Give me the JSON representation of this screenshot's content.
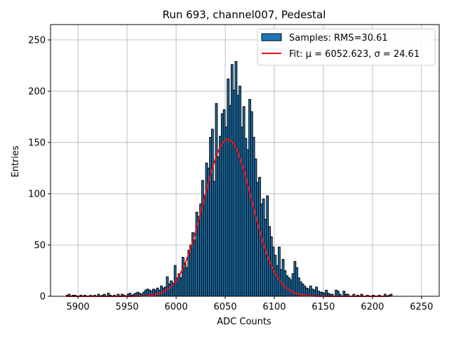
{
  "chart_data": {
    "type": "histogram",
    "title": "Run 693, channel007, Pedestal",
    "xlabel": "ADC Counts",
    "ylabel": "Entries",
    "xlim": [
      5872,
      6268
    ],
    "ylim": [
      0,
      265
    ],
    "xticks": [
      5900,
      5950,
      6000,
      6050,
      6100,
      6150,
      6200,
      6250
    ],
    "yticks": [
      0,
      50,
      100,
      150,
      200,
      250
    ],
    "grid": true,
    "legend_position": "top-right",
    "bin_width": 2,
    "bins": [
      [
        5888,
        1
      ],
      [
        5890,
        2
      ],
      [
        5894,
        1
      ],
      [
        5896,
        1
      ],
      [
        5902,
        1
      ],
      [
        5906,
        1
      ],
      [
        5912,
        1
      ],
      [
        5916,
        1
      ],
      [
        5920,
        2
      ],
      [
        5924,
        1
      ],
      [
        5926,
        2
      ],
      [
        5930,
        3
      ],
      [
        5932,
        1
      ],
      [
        5936,
        1
      ],
      [
        5940,
        2
      ],
      [
        5944,
        2
      ],
      [
        5946,
        1
      ],
      [
        5950,
        2
      ],
      [
        5952,
        3
      ],
      [
        5954,
        1
      ],
      [
        5956,
        2
      ],
      [
        5958,
        3
      ],
      [
        5960,
        4
      ],
      [
        5962,
        3
      ],
      [
        5964,
        2
      ],
      [
        5966,
        4
      ],
      [
        5968,
        6
      ],
      [
        5970,
        7
      ],
      [
        5972,
        6
      ],
      [
        5974,
        5
      ],
      [
        5976,
        7
      ],
      [
        5978,
        6
      ],
      [
        5980,
        8
      ],
      [
        5982,
        6
      ],
      [
        5984,
        10
      ],
      [
        5986,
        8
      ],
      [
        5988,
        9
      ],
      [
        5990,
        19
      ],
      [
        5992,
        12
      ],
      [
        5994,
        15
      ],
      [
        5996,
        13
      ],
      [
        5998,
        30
      ],
      [
        6000,
        18
      ],
      [
        6002,
        22
      ],
      [
        6004,
        18
      ],
      [
        6006,
        38
      ],
      [
        6008,
        32
      ],
      [
        6010,
        28
      ],
      [
        6012,
        45
      ],
      [
        6014,
        50
      ],
      [
        6016,
        62
      ],
      [
        6018,
        55
      ],
      [
        6020,
        82
      ],
      [
        6022,
        78
      ],
      [
        6024,
        90
      ],
      [
        6026,
        113
      ],
      [
        6028,
        98
      ],
      [
        6030,
        130
      ],
      [
        6032,
        125
      ],
      [
        6034,
        155
      ],
      [
        6036,
        163
      ],
      [
        6038,
        112
      ],
      [
        6040,
        188
      ],
      [
        6042,
        136
      ],
      [
        6044,
        156
      ],
      [
        6046,
        178
      ],
      [
        6048,
        182
      ],
      [
        6050,
        165
      ],
      [
        6052,
        212
      ],
      [
        6054,
        186
      ],
      [
        6056,
        226
      ],
      [
        6058,
        201
      ],
      [
        6060,
        229
      ],
      [
        6062,
        196
      ],
      [
        6064,
        205
      ],
      [
        6066,
        165
      ],
      [
        6068,
        185
      ],
      [
        6070,
        154
      ],
      [
        6072,
        143
      ],
      [
        6074,
        192
      ],
      [
        6076,
        180
      ],
      [
        6078,
        155
      ],
      [
        6080,
        134
      ],
      [
        6082,
        111
      ],
      [
        6084,
        116
      ],
      [
        6086,
        90
      ],
      [
        6088,
        95
      ],
      [
        6090,
        75
      ],
      [
        6092,
        98
      ],
      [
        6094,
        68
      ],
      [
        6096,
        58
      ],
      [
        6098,
        48
      ],
      [
        6100,
        40
      ],
      [
        6102,
        30
      ],
      [
        6104,
        48
      ],
      [
        6106,
        26
      ],
      [
        6108,
        36
      ],
      [
        6110,
        25
      ],
      [
        6112,
        20
      ],
      [
        6114,
        18
      ],
      [
        6116,
        16
      ],
      [
        6118,
        22
      ],
      [
        6120,
        34
      ],
      [
        6122,
        28
      ],
      [
        6124,
        18
      ],
      [
        6126,
        14
      ],
      [
        6128,
        12
      ],
      [
        6130,
        10
      ],
      [
        6132,
        8
      ],
      [
        6134,
        7
      ],
      [
        6136,
        10
      ],
      [
        6138,
        7
      ],
      [
        6140,
        6
      ],
      [
        6142,
        9
      ],
      [
        6144,
        5
      ],
      [
        6146,
        4
      ],
      [
        6148,
        4
      ],
      [
        6150,
        3
      ],
      [
        6152,
        6
      ],
      [
        6154,
        3
      ],
      [
        6156,
        2
      ],
      [
        6158,
        2
      ],
      [
        6162,
        6
      ],
      [
        6164,
        5
      ],
      [
        6166,
        2
      ],
      [
        6170,
        5
      ],
      [
        6172,
        2
      ],
      [
        6174,
        2
      ],
      [
        6180,
        2
      ],
      [
        6184,
        1
      ],
      [
        6188,
        2
      ],
      [
        6194,
        1
      ],
      [
        6200,
        1
      ],
      [
        6206,
        1
      ],
      [
        6212,
        2
      ],
      [
        6216,
        1
      ],
      [
        6218,
        2
      ]
    ],
    "series": [
      {
        "name": "Samples: RMS=30.61",
        "type": "histogram",
        "color": "#1f77b4",
        "edgecolor": "#000000"
      },
      {
        "name": "Fit: μ = 6052.623, σ = 24.61",
        "type": "line",
        "color": "#e8101a",
        "model": "gaussian",
        "mu": 6052.623,
        "sigma": 24.61,
        "amplitude": 153,
        "x_range": [
          5888,
          6218
        ]
      }
    ]
  }
}
